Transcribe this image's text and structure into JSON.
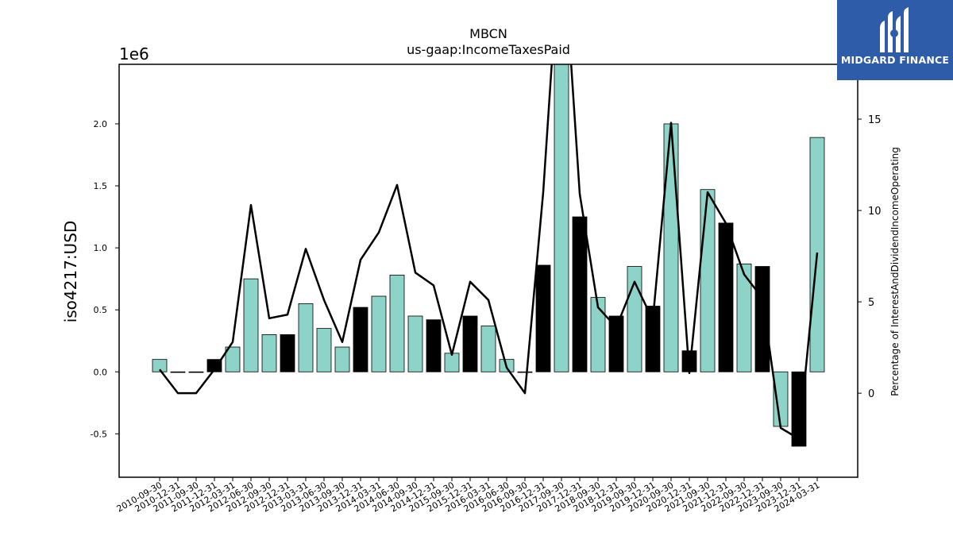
{
  "chart_data": {
    "type": "bar",
    "title": "MBCN",
    "subtitle": "us-gaap:IncomeTaxesPaid",
    "ylabel": "iso4217:USD",
    "y_multiplier_label": "1e6",
    "y2label": "Percentage of InterestAndDividendIncomeOperating",
    "ylim": [
      -0.85,
      2.48
    ],
    "y2lim": [
      -4.6,
      18.0
    ],
    "yticks": [
      "-0.5",
      "0.0",
      "0.5",
      "1.0",
      "1.5",
      "2.0"
    ],
    "yticks_values": [
      -0.5,
      0.0,
      0.5,
      1.0,
      1.5,
      2.0
    ],
    "y2ticks": [
      "0",
      "5",
      "10",
      "15"
    ],
    "y2ticks_values": [
      0,
      5,
      10,
      15
    ],
    "categories": [
      "2010-09-30",
      "2010-12-31",
      "2011-09-30",
      "2011-12-31",
      "2012-03-31",
      "2012-06-30",
      "2012-09-30",
      "2012-12-31",
      "2013-03-31",
      "2013-06-30",
      "2013-09-30",
      "2013-12-31",
      "2014-03-31",
      "2014-06-30",
      "2014-09-30",
      "2014-12-31",
      "2015-09-30",
      "2015-12-31",
      "2016-03-31",
      "2016-06-30",
      "2016-09-30",
      "2016-12-31",
      "2017-09-30",
      "2017-12-31",
      "2018-09-30",
      "2018-12-31",
      "2019-09-30",
      "2019-12-31",
      "2020-09-30",
      "2020-12-31",
      "2021-09-30",
      "2021-12-31",
      "2022-09-30",
      "2022-12-31",
      "2023-09-30",
      "2023-12-31",
      "2024-03-31"
    ],
    "series": [
      {
        "kind": "bar",
        "values": [
          0.1,
          0.0,
          0.0,
          0.1,
          0.2,
          0.75,
          0.3,
          0.3,
          0.55,
          0.35,
          0.2,
          0.52,
          0.61,
          0.78,
          0.45,
          0.42,
          0.15,
          0.45,
          0.37,
          0.1,
          0.0,
          0.86,
          2.55,
          1.25,
          0.6,
          0.45,
          0.85,
          0.53,
          2.0,
          0.17,
          1.47,
          1.2,
          0.87,
          0.85,
          -0.44,
          -0.6,
          1.89
        ],
        "colors": [
          "teal",
          "teal",
          "teal",
          "black",
          "teal",
          "teal",
          "teal",
          "black",
          "teal",
          "teal",
          "teal",
          "black",
          "teal",
          "teal",
          "teal",
          "black",
          "teal",
          "black",
          "teal",
          "teal",
          "teal",
          "black",
          "teal",
          "black",
          "teal",
          "black",
          "teal",
          "black",
          "teal",
          "black",
          "teal",
          "black",
          "teal",
          "black",
          "teal",
          "black",
          "teal"
        ]
      },
      {
        "kind": "line",
        "axis": "right",
        "values": [
          1.3,
          0.0,
          0.0,
          1.3,
          2.8,
          10.3,
          4.1,
          4.3,
          7.9,
          5.1,
          2.8,
          7.3,
          8.8,
          11.4,
          6.6,
          5.9,
          2.1,
          6.1,
          5.1,
          1.4,
          0.0,
          11.0,
          26.0,
          10.9,
          4.7,
          3.6,
          6.1,
          4.0,
          14.8,
          1.1,
          11.0,
          9.3,
          6.5,
          5.2,
          -1.9,
          -2.5,
          7.7
        ]
      }
    ],
    "colors": {
      "teal": "#8dd3c7",
      "black": "#000000",
      "line": "#000000"
    },
    "grid": false
  },
  "logo": {
    "text": "MIDGARD FINANCE",
    "bg": "#2f5ca8"
  }
}
